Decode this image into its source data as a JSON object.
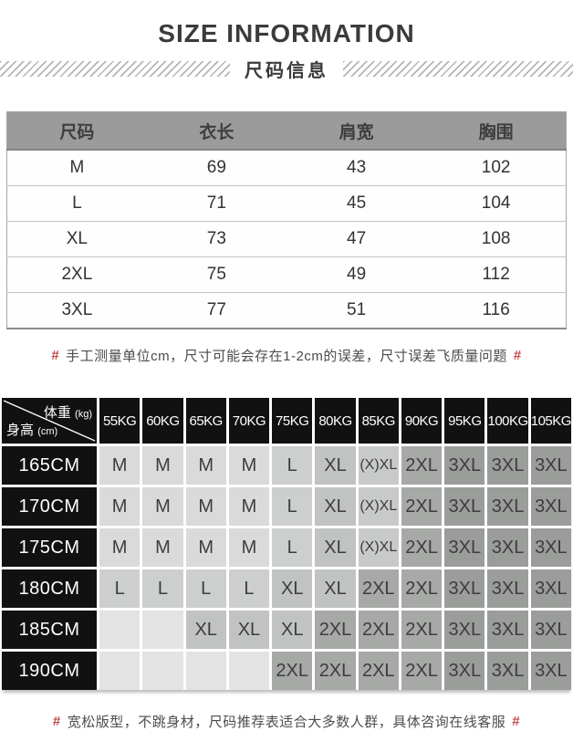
{
  "header": {
    "title": "SIZE INFORMATION",
    "subtitle": "尺码信息"
  },
  "notes": {
    "measurement": {
      "hash": "#",
      "text": "手工测量单位cm，尺寸可能会存在1-2cm的误差，尺寸误差飞质量问题"
    },
    "recommendation": {
      "hash": "#",
      "text": "宽松版型，不跳身材，尺码推荐表适合大多数人群，具体咨询在线客服"
    }
  },
  "chart_data": [
    {
      "type": "table",
      "title": "尺码信息 / SIZE INFORMATION",
      "columns": [
        "尺码",
        "衣长",
        "肩宽",
        "胸围"
      ],
      "rows": [
        [
          "M",
          69,
          43,
          102
        ],
        [
          "L",
          71,
          45,
          104
        ],
        [
          "XL",
          73,
          47,
          108
        ],
        [
          "2XL",
          75,
          49,
          112
        ],
        [
          "3XL",
          77,
          51,
          116
        ]
      ]
    },
    {
      "type": "table",
      "title": "身高/体重尺码推荐表",
      "corner": {
        "top": "体重",
        "top_unit": "(kg)",
        "bottom": "身高",
        "bottom_unit": "(cm)"
      },
      "columns": [
        "55KG",
        "60KG",
        "65KG",
        "70KG",
        "75KG",
        "80KG",
        "85KG",
        "90KG",
        "95KG",
        "100KG",
        "105KG"
      ],
      "row_labels": [
        "165CM",
        "170CM",
        "175CM",
        "180CM",
        "185CM",
        "190CM"
      ],
      "rows": [
        [
          "M",
          "M",
          "M",
          "M",
          "L",
          "XL",
          "(X)XL",
          "2XL",
          "3XL",
          "3XL",
          "3XL"
        ],
        [
          "M",
          "M",
          "M",
          "M",
          "L",
          "XL",
          "(X)XL",
          "2XL",
          "3XL",
          "3XL",
          "3XL"
        ],
        [
          "M",
          "M",
          "M",
          "M",
          "L",
          "XL",
          "(X)XL",
          "2XL",
          "3XL",
          "3XL",
          "3XL"
        ],
        [
          "L",
          "L",
          "L",
          "L",
          "XL",
          "XL",
          "2XL",
          "2XL",
          "3XL",
          "3XL",
          "3XL"
        ],
        [
          "",
          "",
          "XL",
          "XL",
          "XL",
          "2XL",
          "2XL",
          "2XL",
          "3XL",
          "3XL",
          "3XL"
        ],
        [
          "",
          "",
          "",
          "",
          "2XL",
          "2XL",
          "2XL",
          "2XL",
          "3XL",
          "3XL",
          "3XL"
        ]
      ]
    }
  ],
  "colors": {
    "accent_hash": "#c24a4a",
    "size_table_header_bg": "#9b9b9b",
    "matrix_dark_bg": "#111111",
    "cell_shades": {
      "": "#e2e3e2",
      "M": "#d9dad9",
      "L": "#cccfce",
      "XL": "#c0c3c2",
      "(X)XL": "#c7cac9",
      "2XL": "#a6a9a6",
      "3XL": "#9a9d9a"
    }
  }
}
